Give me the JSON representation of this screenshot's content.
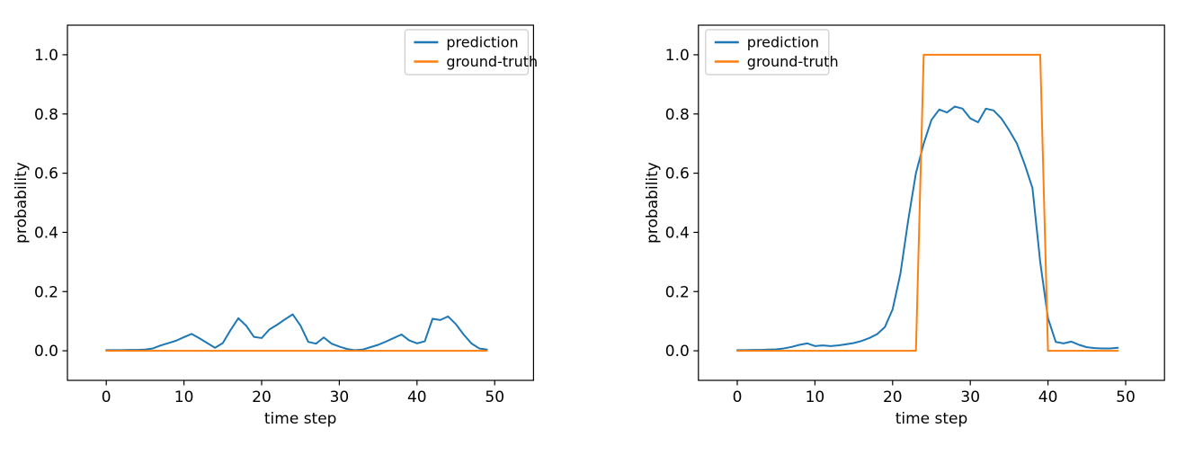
{
  "figure": {
    "background": "#ffffff",
    "axis_color": "#000000",
    "legend_border_color": "#cccccc"
  },
  "chart_data": [
    {
      "type": "line",
      "title": "",
      "xlabel": "time step",
      "ylabel": "probability",
      "xlim": [
        -5,
        55
      ],
      "ylim": [
        -0.1,
        1.1
      ],
      "xticks": [
        0,
        10,
        20,
        30,
        40,
        50
      ],
      "yticks": [
        0.0,
        0.2,
        0.4,
        0.6,
        0.8,
        1.0
      ],
      "grid": false,
      "legend": {
        "position": "upper right",
        "entries": [
          "prediction",
          "ground-truth"
        ]
      },
      "x": [
        0,
        1,
        2,
        3,
        4,
        5,
        6,
        7,
        8,
        9,
        10,
        11,
        12,
        13,
        14,
        15,
        16,
        17,
        18,
        19,
        20,
        21,
        22,
        23,
        24,
        25,
        26,
        27,
        28,
        29,
        30,
        31,
        32,
        33,
        34,
        35,
        36,
        37,
        38,
        39,
        40,
        41,
        42,
        43,
        44,
        45,
        46,
        47,
        48,
        49
      ],
      "series": [
        {
          "name": "prediction",
          "color": "#1f77b4",
          "values": [
            0.002,
            0.002,
            0.002,
            0.003,
            0.003,
            0.004,
            0.008,
            0.018,
            0.026,
            0.034,
            0.046,
            0.057,
            0.042,
            0.026,
            0.01,
            0.026,
            0.07,
            0.11,
            0.085,
            0.047,
            0.043,
            0.072,
            0.088,
            0.106,
            0.123,
            0.085,
            0.03,
            0.024,
            0.045,
            0.024,
            0.014,
            0.006,
            0.002,
            0.004,
            0.012,
            0.02,
            0.031,
            0.043,
            0.055,
            0.035,
            0.025,
            0.032,
            0.108,
            0.104,
            0.116,
            0.09,
            0.055,
            0.025,
            0.008,
            0.004
          ]
        },
        {
          "name": "ground-truth",
          "color": "#ff7f0e",
          "values": [
            0,
            0,
            0,
            0,
            0,
            0,
            0,
            0,
            0,
            0,
            0,
            0,
            0,
            0,
            0,
            0,
            0,
            0,
            0,
            0,
            0,
            0,
            0,
            0,
            0,
            0,
            0,
            0,
            0,
            0,
            0,
            0,
            0,
            0,
            0,
            0,
            0,
            0,
            0,
            0,
            0,
            0,
            0,
            0,
            0,
            0,
            0,
            0,
            0,
            0
          ]
        }
      ]
    },
    {
      "type": "line",
      "title": "",
      "xlabel": "time step",
      "ylabel": "probability",
      "xlim": [
        -5,
        55
      ],
      "ylim": [
        -0.1,
        1.1
      ],
      "xticks": [
        0,
        10,
        20,
        30,
        40,
        50
      ],
      "yticks": [
        0.0,
        0.2,
        0.4,
        0.6,
        0.8,
        1.0
      ],
      "grid": false,
      "legend": {
        "position": "upper left",
        "entries": [
          "prediction",
          "ground-truth"
        ]
      },
      "x": [
        0,
        1,
        2,
        3,
        4,
        5,
        6,
        7,
        8,
        9,
        10,
        11,
        12,
        13,
        14,
        15,
        16,
        17,
        18,
        19,
        20,
        21,
        22,
        23,
        24,
        25,
        26,
        27,
        28,
        29,
        30,
        31,
        32,
        33,
        34,
        35,
        36,
        37,
        38,
        39,
        40,
        41,
        42,
        43,
        44,
        45,
        46,
        47,
        48,
        49
      ],
      "series": [
        {
          "name": "prediction",
          "color": "#1f77b4",
          "values": [
            0.002,
            0.002,
            0.003,
            0.003,
            0.004,
            0.005,
            0.008,
            0.013,
            0.02,
            0.025,
            0.016,
            0.018,
            0.016,
            0.018,
            0.022,
            0.026,
            0.033,
            0.043,
            0.056,
            0.08,
            0.14,
            0.26,
            0.44,
            0.6,
            0.7,
            0.78,
            0.815,
            0.805,
            0.825,
            0.818,
            0.785,
            0.772,
            0.818,
            0.812,
            0.785,
            0.745,
            0.7,
            0.63,
            0.55,
            0.3,
            0.11,
            0.03,
            0.025,
            0.031,
            0.02,
            0.012,
            0.009,
            0.008,
            0.008,
            0.01
          ]
        },
        {
          "name": "ground-truth",
          "color": "#ff7f0e",
          "values": [
            0,
            0,
            0,
            0,
            0,
            0,
            0,
            0,
            0,
            0,
            0,
            0,
            0,
            0,
            0,
            0,
            0,
            0,
            0,
            0,
            0,
            0,
            0,
            0,
            1,
            1,
            1,
            1,
            1,
            1,
            1,
            1,
            1,
            1,
            1,
            1,
            1,
            1,
            1,
            1,
            0,
            0,
            0,
            0,
            0,
            0,
            0,
            0,
            0,
            0
          ]
        }
      ]
    }
  ]
}
